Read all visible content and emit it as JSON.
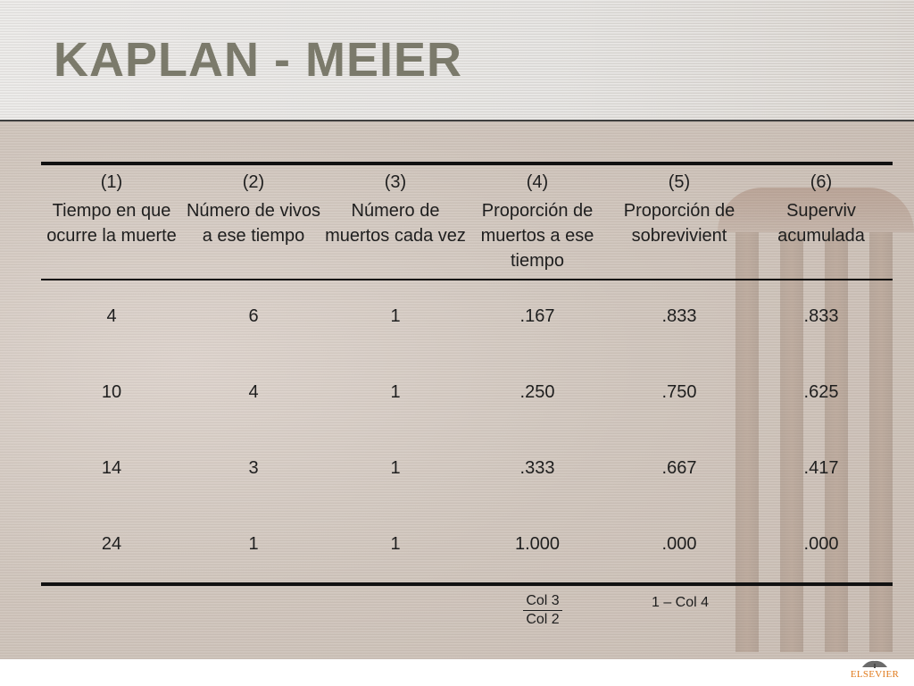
{
  "slide": {
    "title": "KAPLAN - MEIER"
  },
  "table": {
    "columns": [
      {
        "num": "(1)",
        "label": "Tiempo en que ocurre la muerte"
      },
      {
        "num": "(2)",
        "label": "Número de vivos a ese tiempo"
      },
      {
        "num": "(3)",
        "label": "Número de muertos cada vez"
      },
      {
        "num": "(4)",
        "label": "Proporción de muertos a ese tiempo"
      },
      {
        "num": "(5)",
        "label": "Proporción de sobrevivient"
      },
      {
        "num": "(6)",
        "label": "Superviv acumulada"
      }
    ],
    "rows": [
      [
        "4",
        "6",
        "1",
        ".167",
        ".833",
        ".833"
      ],
      [
        "10",
        "4",
        "1",
        ".250",
        ".750",
        ".625"
      ],
      [
        "14",
        "3",
        "1",
        ".333",
        ".667",
        ".417"
      ],
      [
        "24",
        "1",
        "1",
        "1.000",
        ".000",
        ".000"
      ]
    ],
    "footnotes": {
      "col4_numerator": "Col 3",
      "col4_denominator": "Col 2",
      "col5": "1 – Col 4"
    }
  },
  "branding": {
    "publisher": "ELSEVIER",
    "publisher_color": "#e07a1c"
  },
  "colors": {
    "title": "#7b7a6b",
    "text": "#1e1e1e"
  }
}
